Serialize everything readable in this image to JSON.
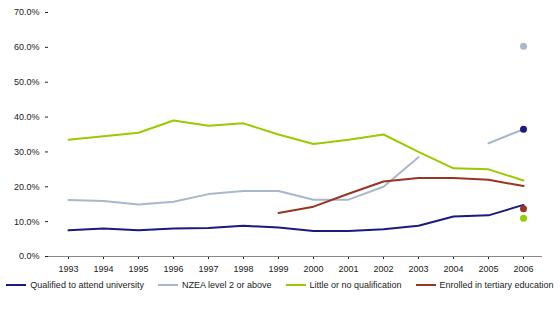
{
  "chart_data": {
    "type": "line",
    "categories": [
      "1993",
      "1994",
      "1995",
      "1996",
      "1997",
      "1998",
      "1999",
      "2000",
      "2001",
      "2002",
      "2003",
      "2004",
      "2005",
      "2006"
    ],
    "ylim": [
      0,
      70
    ],
    "yticks": [
      {
        "value": 0,
        "label": "0.0%"
      },
      {
        "value": 10,
        "label": "10.0%"
      },
      {
        "value": 20,
        "label": "20.0%"
      },
      {
        "value": 30,
        "label": "30.0%"
      },
      {
        "value": 40,
        "label": "40.0%"
      },
      {
        "value": 50,
        "label": "50.0%"
      },
      {
        "value": 60,
        "label": "60.0%"
      },
      {
        "value": 70,
        "label": "70.0%"
      }
    ],
    "grid": false,
    "legend": "bottom",
    "series": [
      {
        "name": "Qualified to attend university",
        "color": "#1a1a80",
        "values": [
          7.5,
          8.0,
          7.5,
          8.0,
          8.2,
          8.8,
          8.3,
          7.3,
          7.3,
          7.8,
          8.8,
          11.5,
          11.8,
          14.8
        ],
        "points": [
          {
            "x": "2006",
            "y": 36.5
          }
        ]
      },
      {
        "name": "NZEA level 2 or above",
        "color": "#a8b8cc",
        "values": [
          16.2,
          15.9,
          14.9,
          15.7,
          17.9,
          18.8,
          18.8,
          16.3,
          16.3,
          20.0,
          28.5,
          null,
          32.5,
          36.5
        ],
        "points": [
          {
            "x": "2006",
            "y": 60.3
          }
        ]
      },
      {
        "name": "Little or no qualification",
        "color": "#99cc00",
        "values": [
          33.5,
          34.5,
          35.5,
          39.0,
          37.5,
          38.2,
          35.0,
          32.3,
          33.5,
          35.0,
          30.0,
          25.3,
          25.0,
          21.8
        ],
        "points": [
          {
            "x": "2006",
            "y": 11.0
          }
        ]
      },
      {
        "name": "Enrolled in tertiary education",
        "color": "#993322",
        "values": [
          null,
          null,
          null,
          null,
          null,
          null,
          12.5,
          14.3,
          18.0,
          21.5,
          22.5,
          22.5,
          22.0,
          20.2
        ],
        "points": [
          {
            "x": "2006",
            "y": 13.7
          }
        ]
      }
    ]
  }
}
